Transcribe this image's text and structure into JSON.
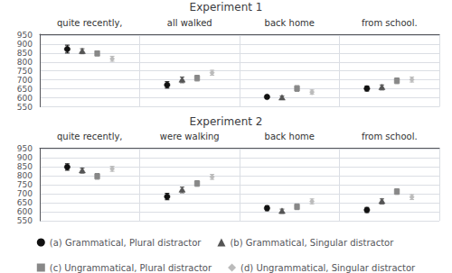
{
  "chart_data": [
    {
      "type": "scatter",
      "title": "Experiment 1",
      "categories": [
        "quite recently,",
        "all walked",
        "back home",
        "from school."
      ],
      "series": [
        {
          "name": "(a) Grammatical, Plural distractor",
          "marker": "circle",
          "color": "#111111",
          "values": [
            872,
            672,
            605,
            652
          ],
          "errors": [
            22,
            18,
            10,
            14
          ]
        },
        {
          "name": "(b) Grammatical, Singular distractor",
          "marker": "triangle",
          "color": "#555555",
          "values": [
            860,
            700,
            600,
            658
          ],
          "errors": [
            14,
            16,
            10,
            14
          ]
        },
        {
          "name": "(c) Ungrammatical, Plural distractor",
          "marker": "square",
          "color": "#888888",
          "values": [
            848,
            710,
            652,
            695
          ],
          "errors": [
            14,
            16,
            16,
            16
          ]
        },
        {
          "name": "(d) Ungrammatical, Singular distractor",
          "marker": "diamond",
          "color": "#bbbbbb",
          "values": [
            818,
            740,
            632,
            702
          ],
          "errors": [
            14,
            14,
            12,
            14
          ]
        }
      ],
      "ylim": [
        550,
        955
      ],
      "yticks": [
        550,
        600,
        650,
        700,
        750,
        800,
        850,
        900,
        950
      ],
      "grid": true,
      "legend": "bottom"
    },
    {
      "type": "scatter",
      "title": "Experiment 2",
      "categories": [
        "quite recently,",
        "were walking",
        "back home",
        "from school."
      ],
      "series": [
        {
          "name": "(a) Grammatical, Plural distractor",
          "marker": "circle",
          "color": "#111111",
          "values": [
            850,
            685,
            620,
            610
          ],
          "errors": [
            18,
            18,
            14,
            14
          ]
        },
        {
          "name": "(b) Grammatical, Singular distractor",
          "marker": "triangle",
          "color": "#555555",
          "values": [
            830,
            722,
            603,
            658
          ],
          "errors": [
            14,
            16,
            12,
            14
          ]
        },
        {
          "name": "(c) Ungrammatical, Plural distractor",
          "marker": "square",
          "color": "#888888",
          "values": [
            798,
            758,
            628,
            713
          ],
          "errors": [
            16,
            16,
            16,
            16
          ]
        },
        {
          "name": "(d) Ungrammatical, Singular distractor",
          "marker": "diamond",
          "color": "#bbbbbb",
          "values": [
            840,
            795,
            658,
            682
          ],
          "errors": [
            14,
            14,
            14,
            14
          ]
        }
      ],
      "ylim": [
        550,
        955
      ],
      "yticks": [
        550,
        600,
        650,
        700,
        750,
        800,
        850,
        900,
        950
      ],
      "grid": true,
      "legend": "bottom"
    }
  ]
}
